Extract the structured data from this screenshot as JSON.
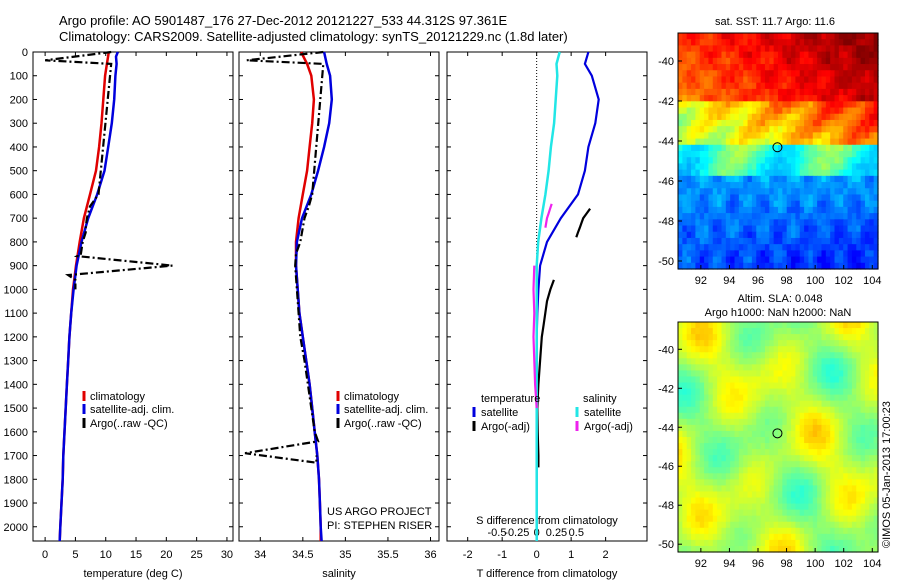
{
  "header": {
    "line1": "Argo profile: AO 5901487_176 27-Dec-2012 20121227_533 44.312S 97.361E",
    "line2": "Climatology: CARS2009. Satellite-adjusted climatology: synTS_20121229.nc (1.8d later)"
  },
  "colors": {
    "climatology": "#e00000",
    "satellite": "#0000dd",
    "argo": "#000000",
    "sat_salinity": "#22e6e6",
    "argo_salinity": "#ee22ee",
    "map_circle": "#000000"
  },
  "chart_data": [
    {
      "id": "temperature",
      "type": "line",
      "xlabel": "temperature (deg C)",
      "ylabel": "",
      "xlim": [
        -2,
        31
      ],
      "ylim": [
        2060,
        0
      ],
      "xticks": [
        "0",
        "5",
        "10",
        "15",
        "20",
        "25",
        "30"
      ],
      "yticks": [
        "0",
        "100",
        "200",
        "300",
        "400",
        "500",
        "600",
        "700",
        "800",
        "900",
        "1000",
        "1100",
        "1200",
        "1300",
        "1400",
        "1500",
        "1600",
        "1700",
        "1800",
        "1900",
        "2000"
      ],
      "legend": [
        "climatology",
        "satellite-adj. clim.",
        "Argo(..raw -QC)"
      ],
      "series": [
        {
          "name": "climatology",
          "depth": [
            0,
            50,
            100,
            200,
            300,
            400,
            500,
            600,
            700,
            800,
            900,
            1000,
            1100,
            1200,
            1300,
            1400,
            1500,
            1600,
            1700,
            1800,
            1900,
            2000,
            2060
          ],
          "values": [
            10.5,
            10.2,
            9.9,
            9.6,
            9.3,
            8.9,
            8.4,
            7.4,
            6.4,
            5.7,
            5.1,
            4.6,
            4.3,
            4.0,
            3.8,
            3.6,
            3.4,
            3.2,
            3.0,
            2.9,
            2.7,
            2.5,
            2.4
          ]
        },
        {
          "name": "satellite-adj. clim.",
          "depth": [
            0,
            20,
            50,
            100,
            200,
            300,
            400,
            500,
            600,
            700,
            800,
            900,
            1000,
            1100,
            1200,
            1300,
            1400,
            1500,
            1600,
            1700,
            1800,
            1900,
            2000,
            2060
          ],
          "values": [
            12.0,
            11.7,
            11.8,
            11.6,
            11.4,
            11.0,
            10.4,
            9.8,
            8.6,
            7.1,
            6.0,
            5.2,
            4.7,
            4.3,
            4.0,
            3.8,
            3.6,
            3.4,
            3.2,
            3.0,
            2.9,
            2.7,
            2.5,
            2.4
          ]
        },
        {
          "name": "Argo(..raw -QC)",
          "depth": [
            0,
            35,
            50,
            600,
            650,
            700,
            740,
            760,
            800,
            850,
            860,
            900,
            940,
            960,
            1000
          ],
          "values": [
            10.9,
            0.0,
            10.9,
            8.8,
            7.4,
            6.9,
            6.7,
            6.7,
            6.2,
            5.9,
            5.3,
            21.0,
            3.8,
            5.0,
            5.0
          ]
        }
      ]
    },
    {
      "id": "salinity",
      "type": "line",
      "xlabel": "salinity",
      "ylabel": "",
      "xlim": [
        33.75,
        36.1
      ],
      "ylim": [
        2060,
        0
      ],
      "xticks": [
        "34",
        "34.5",
        "35",
        "35.5",
        "36"
      ],
      "legend": [
        "climatology",
        "satellite-adj. clim.",
        "Argo(..raw -QC)"
      ],
      "series": [
        {
          "name": "climatology",
          "depth": [
            0,
            50,
            100,
            200,
            300,
            400,
            500,
            600,
            700,
            800,
            900,
            1000,
            1100,
            1200,
            1300,
            1400,
            1500,
            1600,
            1700,
            1800,
            1900,
            2000,
            2060
          ],
          "values": [
            34.48,
            34.55,
            34.6,
            34.63,
            34.61,
            34.58,
            34.55,
            34.5,
            34.45,
            34.42,
            34.42,
            34.44,
            34.46,
            34.5,
            34.54,
            34.58,
            34.61,
            34.64,
            34.67,
            34.69,
            34.7,
            34.71,
            34.71
          ]
        },
        {
          "name": "satellite-adj. clim.",
          "depth": [
            0,
            50,
            100,
            200,
            300,
            400,
            500,
            600,
            700,
            800,
            900,
            1000,
            1100,
            1200,
            1300,
            1400,
            1500,
            1600,
            1700,
            1800,
            1900,
            2000,
            2060
          ],
          "values": [
            34.75,
            34.78,
            34.82,
            34.84,
            34.81,
            34.75,
            34.68,
            34.6,
            34.49,
            34.43,
            34.42,
            34.44,
            34.46,
            34.5,
            34.54,
            34.58,
            34.61,
            34.64,
            34.67,
            34.69,
            34.7,
            34.71,
            34.72
          ]
        },
        {
          "name": "Argo(..raw -QC)",
          "depth": [
            0,
            35,
            50,
            600,
            650,
            700,
            800,
            850,
            900,
            1000,
            1100,
            1200,
            1300,
            1400,
            1500,
            1600,
            1640,
            1690,
            1730,
            1700
          ],
          "values": [
            34.74,
            33.84,
            34.74,
            34.61,
            34.57,
            34.52,
            34.47,
            34.42,
            34.41,
            34.43,
            34.45,
            34.47,
            34.52,
            34.56,
            34.6,
            34.64,
            34.68,
            33.82,
            34.66,
            34.66
          ]
        }
      ],
      "annotation": [
        "US ARGO PROJECT",
        "PI: STEPHEN RISER"
      ]
    },
    {
      "id": "difference",
      "type": "line",
      "xlabel": "T difference from climatology",
      "xlabel_top": "S difference from climatology",
      "xlim": [
        -2.6,
        3.2
      ],
      "ylim": [
        2060,
        0
      ],
      "xticks": [
        "-2",
        "-1",
        "0",
        "1",
        "2"
      ],
      "sticks": [
        "-0.5",
        "-0.25",
        "0",
        "0.25",
        "0.5"
      ],
      "legend_headers": [
        "temperature",
        "salinity"
      ],
      "legend": [
        "satellite",
        "Argo(-adj)",
        "satellite",
        "Argo(-adj)"
      ],
      "series": [
        {
          "name": "T satellite",
          "depth": [
            0,
            50,
            100,
            200,
            300,
            400,
            500,
            600,
            700,
            800,
            900,
            1000,
            1100,
            1200,
            1300,
            1500,
            1800,
            2060
          ],
          "values": [
            1.5,
            1.4,
            1.6,
            1.8,
            1.7,
            1.5,
            1.4,
            1.2,
            0.7,
            0.3,
            0.1,
            0.05,
            0.02,
            0.0,
            0.0,
            0.0,
            0.0,
            0.0
          ]
        },
        {
          "name": "T Argo(-adj)",
          "depth": [
            660,
            680,
            700,
            720,
            740,
            760,
            780,
            960,
            1000,
            1050,
            1100,
            1150,
            1200,
            1300,
            1400,
            1500,
            1600,
            1700,
            1750
          ],
          "values": [
            1.55,
            1.45,
            1.35,
            1.3,
            1.25,
            1.2,
            1.15,
            0.5,
            0.4,
            0.3,
            0.25,
            0.2,
            0.15,
            0.1,
            0.05,
            0.02,
            0.03,
            0.05,
            0.05
          ]
        },
        {
          "name": "S satellite",
          "depth": [
            0,
            50,
            100,
            200,
            300,
            400,
            500,
            600,
            700,
            800,
            900,
            1000,
            1100,
            1200,
            1300,
            1400,
            1600,
            1800,
            2060
          ],
          "values": [
            0.29,
            0.25,
            0.26,
            0.24,
            0.22,
            0.18,
            0.15,
            0.11,
            0.06,
            0.02,
            0.0,
            0.0,
            0.0,
            0.0,
            0.0,
            0.0,
            0.0,
            0.0,
            0.0
          ]
        },
        {
          "name": "S Argo(-adj)",
          "depth": [
            640,
            660,
            680,
            700,
            720,
            740,
            900,
            1000,
            1100,
            1200,
            1300,
            1400,
            1500
          ],
          "values": [
            0.19,
            0.17,
            0.15,
            0.13,
            0.12,
            0.11,
            -0.03,
            -0.04,
            -0.03,
            -0.04,
            -0.03,
            -0.02,
            0.0
          ]
        }
      ]
    },
    {
      "id": "sst_map",
      "type": "heatmap",
      "title": "sat. SST: 11.7  Argo: 11.6",
      "xlim": [
        90.4,
        104.4
      ],
      "ylim": [
        -50.4,
        -38.6
      ],
      "xticks": [
        "92",
        "94",
        "96",
        "98",
        "100",
        "102",
        "104"
      ],
      "yticks": [
        "-40",
        "-42",
        "-44",
        "-46",
        "-48",
        "-50"
      ],
      "marker": {
        "lon": 97.361,
        "lat": -44.312
      }
    },
    {
      "id": "sla_map",
      "type": "heatmap",
      "title_line1": "Altim. SLA: 0.048",
      "title_line2": "Argo h1000: NaN h2000: NaN",
      "xlim": [
        90.4,
        104.4
      ],
      "ylim": [
        -50.4,
        -38.6
      ],
      "xticks": [
        "92",
        "94",
        "96",
        "98",
        "100",
        "102",
        "104"
      ],
      "yticks": [
        "-40",
        "-42",
        "-44",
        "-46",
        "-48",
        "-50"
      ],
      "marker": {
        "lon": 97.361,
        "lat": -44.312
      }
    }
  ],
  "footer": {
    "stamp": "©IMOS 05-Jan-2013 17:00:23"
  }
}
